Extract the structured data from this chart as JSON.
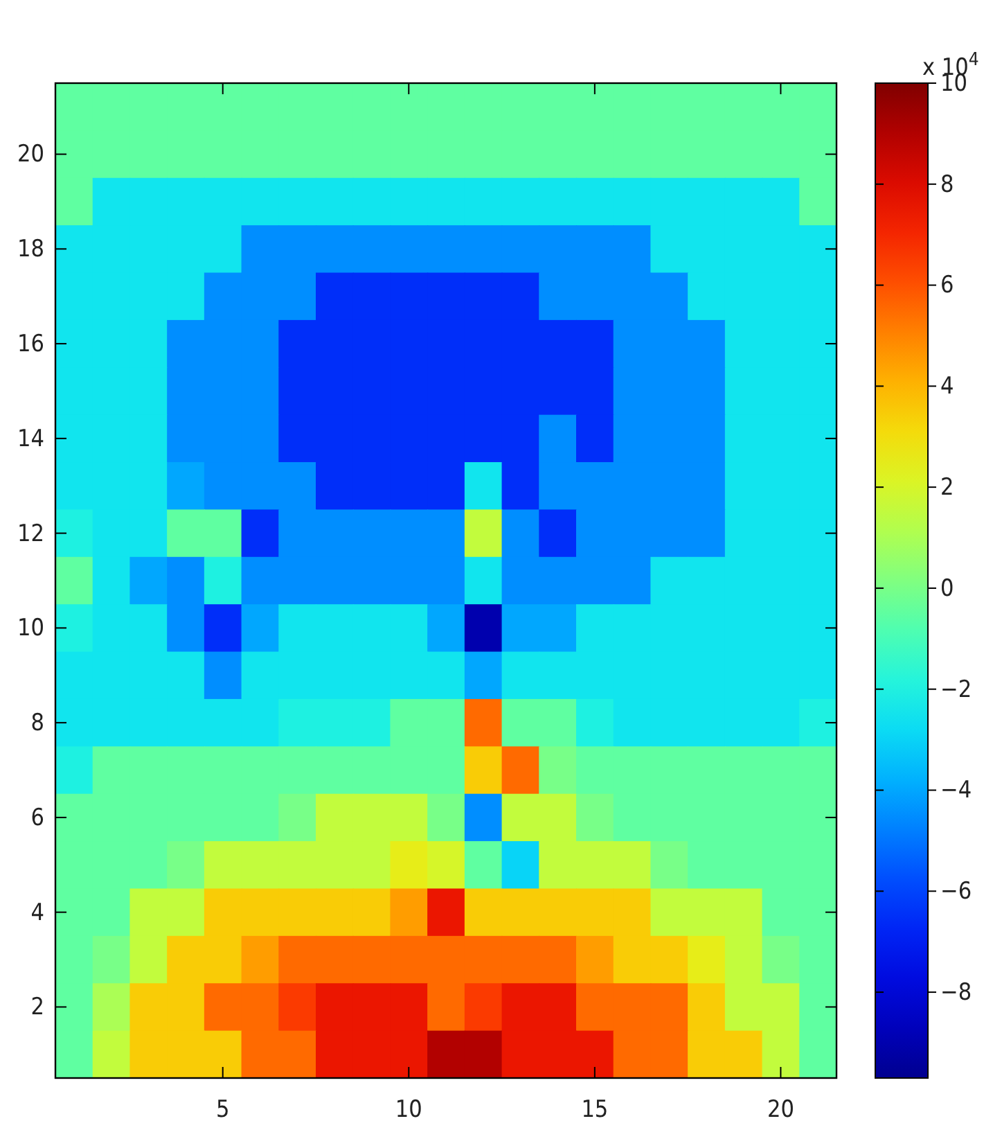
{
  "chart_data": {
    "type": "heatmap",
    "clabel": "x 10$^{4}$",
    "categories": [
      null,
      null,
      null,
      null,
      "5",
      null,
      null,
      null,
      null,
      "10",
      null,
      null,
      null,
      null,
      "15",
      null,
      null,
      null,
      null,
      "20",
      null
    ],
    "y_categories": [
      null,
      "20",
      null,
      "18",
      null,
      "16",
      null,
      "14",
      null,
      "12",
      null,
      "10",
      null,
      "8",
      null,
      "6",
      null,
      "4",
      null,
      "2",
      null
    ],
    "clim": [
      -9.7,
      10
    ],
    "cticks": [
      -8,
      -6,
      -4,
      -2,
      0,
      2,
      4,
      6,
      8,
      10
    ],
    "cells": [
      [
        -0.5,
        -0.5,
        -0.5,
        -0.5,
        -0.5,
        -0.5,
        -0.5,
        -0.5,
        -0.5,
        -0.5,
        -0.5,
        -0.5,
        -0.5,
        -0.5,
        -0.5,
        -0.5,
        -0.5,
        -0.5,
        -0.5,
        -0.5,
        -0.5
      ],
      [
        -0.5,
        -0.5,
        -0.5,
        -0.5,
        -0.5,
        -0.5,
        -0.5,
        -0.5,
        -0.5,
        -0.5,
        -0.5,
        -0.5,
        -0.5,
        -0.5,
        -0.5,
        -0.5,
        -0.5,
        -0.5,
        -0.5,
        -0.5,
        -0.5
      ],
      [
        -0.5,
        -2.5,
        -2.5,
        -2.5,
        -2.5,
        -2.5,
        -2.5,
        -2.5,
        -2.5,
        -2.5,
        -2.5,
        -2.5,
        -2.5,
        -2.5,
        -2.5,
        -2.5,
        -2.5,
        -2.5,
        -2.5,
        -2.5,
        -0.5
      ],
      [
        -2.5,
        -2.5,
        -2.5,
        -2.5,
        -2.5,
        -4.5,
        -4.5,
        -4.5,
        -4.5,
        -4.5,
        -4.5,
        -4.5,
        -4.5,
        -4.5,
        -4.5,
        -4.5,
        -2.5,
        -2.5,
        -2.5,
        -2.5,
        -2.5
      ],
      [
        -2.5,
        -2.5,
        -2.5,
        -2.5,
        -4.5,
        -4.5,
        -4.5,
        -6.5,
        -6.5,
        -6.5,
        -6.5,
        -6.5,
        -6.5,
        -4.5,
        -4.5,
        -4.5,
        -4.5,
        -2.5,
        -2.5,
        -2.5,
        -2.5
      ],
      [
        -2.5,
        -2.5,
        -2.5,
        -4.5,
        -4.5,
        -4.5,
        -6.5,
        -6.5,
        -6.5,
        -6.5,
        -6.5,
        -6.5,
        -6.5,
        -6.5,
        -6.5,
        -4.5,
        -4.5,
        -4.5,
        -2.5,
        -2.5,
        -2.5
      ],
      [
        -2.5,
        -2.5,
        -2.5,
        -4.5,
        -4.5,
        -4.5,
        -6.5,
        -6.5,
        -6.5,
        -6.5,
        -6.5,
        -6.5,
        -6.5,
        -6.5,
        -6.5,
        -4.5,
        -4.5,
        -4.5,
        -2.5,
        -2.5,
        -2.5
      ],
      [
        -2.5,
        -2.5,
        -2.5,
        -4.5,
        -4.5,
        -4.5,
        -6.5,
        -6.5,
        -6.5,
        -6.5,
        -6.5,
        -6.5,
        -6.5,
        -4.5,
        -6.5,
        -4.5,
        -4.5,
        -4.5,
        -2.5,
        -2.5,
        -2.5
      ],
      [
        -2.5,
        -2.5,
        -2.5,
        -4,
        -4.5,
        -4.5,
        -4.5,
        -6.5,
        -6.5,
        -6.5,
        -6.5,
        -2.5,
        -6.5,
        -4.5,
        -4.5,
        -4.5,
        -4.5,
        -4.5,
        -2.5,
        -2.5,
        -2.5
      ],
      [
        -2,
        -2.5,
        -2.5,
        -0.5,
        -0.5,
        -6.5,
        -4.5,
        -4.5,
        -4.5,
        -4.5,
        -4.5,
        1.5,
        -4.5,
        -6.5,
        -4.5,
        -4.5,
        -4.5,
        -4.5,
        -2.5,
        -2.5,
        -2.5
      ],
      [
        -0.5,
        -2.5,
        -4,
        -4.5,
        -2,
        -4.5,
        -4.5,
        -4.5,
        -4.5,
        -4.5,
        -4.5,
        -2.5,
        -4.5,
        -4.5,
        -4.5,
        -4.5,
        -2.5,
        -2.5,
        -2.5,
        -2.5,
        -2.5
      ],
      [
        -2,
        -2.5,
        -2.5,
        -4.5,
        -6.5,
        -4,
        -2.5,
        -2.5,
        -2.5,
        -2.5,
        -4,
        -9,
        -4,
        -4,
        -2.5,
        -2.5,
        -2.5,
        -2.5,
        -2.5,
        -2.5,
        -2.5
      ],
      [
        -2.5,
        -2.5,
        -2.5,
        -2.5,
        -4.5,
        -2.5,
        -2.5,
        -2.5,
        -2.5,
        -2.5,
        -2.5,
        -4,
        -2.5,
        -2.5,
        -2.5,
        -2.5,
        -2.5,
        -2.5,
        -2.5,
        -2.5,
        -2.5
      ],
      [
        -2.5,
        -2.5,
        -2.5,
        -2.5,
        -2.5,
        -2.5,
        -2,
        -2,
        -2,
        -0.5,
        -0.5,
        5.5,
        -0.5,
        -0.5,
        -2,
        -2.5,
        -2.5,
        -2.5,
        -2.5,
        -2.5,
        -2
      ],
      [
        -2,
        -0.5,
        -0.5,
        -0.5,
        -0.5,
        -0.5,
        -0.5,
        -0.5,
        -0.5,
        -0.5,
        -0.5,
        3.5,
        5.5,
        0,
        -0.5,
        -0.5,
        -0.5,
        -0.5,
        -0.5,
        -0.5,
        -0.5
      ],
      [
        -0.5,
        -0.5,
        -0.5,
        -0.5,
        -0.5,
        -0.5,
        0,
        1.5,
        1.5,
        1.5,
        0,
        -4.5,
        1.5,
        1.5,
        0,
        -0.5,
        -0.5,
        -0.5,
        -0.5,
        -0.5,
        -0.5
      ],
      [
        -0.5,
        -0.5,
        -0.5,
        0,
        1.5,
        1.5,
        1.5,
        1.5,
        1.5,
        2.5,
        2,
        -0.5,
        -3,
        1.5,
        1.5,
        1.5,
        0,
        -0.5,
        -0.5,
        -0.5,
        -0.5
      ],
      [
        -0.5,
        -0.5,
        1.5,
        1.5,
        3.5,
        3.5,
        3.5,
        3.5,
        3.5,
        4.5,
        7.5,
        3.5,
        3.5,
        3.5,
        3.5,
        3.5,
        1.5,
        1.5,
        1.5,
        -0.5,
        -0.5
      ],
      [
        -0.5,
        0,
        1.5,
        3.5,
        3.5,
        4.5,
        5.5,
        5.5,
        5.5,
        5.5,
        5.5,
        5.5,
        5.5,
        5.5,
        4.5,
        3.5,
        3.5,
        2.5,
        1.5,
        0,
        -0.5
      ],
      [
        -0.5,
        1,
        3.5,
        3.5,
        5.5,
        5.5,
        6.5,
        7.5,
        7.5,
        7.5,
        5.5,
        6.5,
        7.5,
        7.5,
        5.5,
        5.5,
        5.5,
        3.5,
        1.5,
        1.5,
        -0.5
      ],
      [
        -0.5,
        1.5,
        3.5,
        3.5,
        3.5,
        5.5,
        5.5,
        7.5,
        7.5,
        7.5,
        9,
        9,
        7.5,
        7.5,
        7.5,
        5.5,
        5.5,
        3.5,
        3.5,
        1.5,
        -0.5
      ]
    ]
  }
}
